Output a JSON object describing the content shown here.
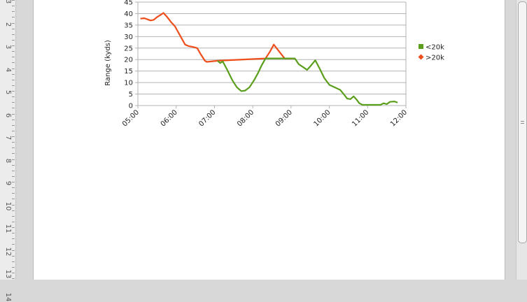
{
  "ruler": {
    "labels": [
      "3",
      "2",
      "3",
      "4",
      "5",
      "6",
      "7",
      "8",
      "9",
      "10",
      "11",
      "12",
      "13",
      "14"
    ]
  },
  "chart_data": {
    "type": "line",
    "title": "",
    "xlabel": "",
    "ylabel": "Range (kyds)",
    "x_ticks": [
      "05:00",
      "06:00",
      "07:00",
      "08:00",
      "09:00",
      "10:00",
      "11:00",
      "12:00"
    ],
    "y_ticks": [
      "0",
      "5",
      "10",
      "15",
      "20",
      "25",
      "30",
      "35",
      "40",
      "45"
    ],
    "ylim": [
      0,
      45
    ],
    "xlim": [
      "05:00",
      "12:00"
    ],
    "grid": true,
    "legend_position": "right",
    "series": [
      {
        "name": "<20k",
        "color": "#5a9e1b",
        "marker": "square",
        "points": [
          [
            "07:05",
            19.5
          ],
          [
            "07:09",
            18.5
          ],
          [
            "07:13",
            19.2
          ],
          [
            "07:20",
            15.5
          ],
          [
            "07:28",
            11.0
          ],
          [
            "07:35",
            8.0
          ],
          [
            "07:42",
            6.3
          ],
          [
            "07:48",
            6.5
          ],
          [
            "07:55",
            8.0
          ],
          [
            "08:02",
            11.0
          ],
          [
            "08:08",
            14.0
          ],
          [
            "08:14",
            17.5
          ],
          [
            "08:20",
            20.5
          ],
          [
            "09:06",
            20.5
          ],
          [
            "09:12",
            18.0
          ],
          [
            "09:20",
            16.5
          ],
          [
            "09:25",
            15.5
          ],
          [
            "09:30",
            17.0
          ],
          [
            "09:38",
            19.7
          ],
          [
            "09:45",
            16.0
          ],
          [
            "09:52",
            12.0
          ],
          [
            "10:00",
            9.0
          ],
          [
            "10:08",
            8.0
          ],
          [
            "10:17",
            6.8
          ],
          [
            "10:23",
            4.8
          ],
          [
            "10:28",
            3.0
          ],
          [
            "10:33",
            2.8
          ],
          [
            "10:38",
            4.0
          ],
          [
            "10:43",
            2.5
          ],
          [
            "10:47",
            1.0
          ],
          [
            "10:52",
            0.3
          ],
          [
            "11:00",
            0.3
          ],
          [
            "11:10",
            0.3
          ],
          [
            "11:20",
            0.3
          ],
          [
            "11:25",
            1.0
          ],
          [
            "11:30",
            0.6
          ],
          [
            "11:35",
            1.6
          ],
          [
            "11:42",
            1.8
          ],
          [
            "11:47",
            1.3
          ]
        ]
      },
      {
        "name": ">20k",
        "color": "#ee4e1c",
        "marker": "diamond",
        "points": [
          [
            "05:04",
            37.8
          ],
          [
            "05:10",
            38.0
          ],
          [
            "05:15",
            37.5
          ],
          [
            "05:20",
            37.0
          ],
          [
            "05:25",
            37.3
          ],
          [
            "05:30",
            38.5
          ],
          [
            "05:36",
            39.5
          ],
          [
            "05:40",
            40.3
          ],
          [
            "05:46",
            38.5
          ],
          [
            "05:52",
            36.3
          ],
          [
            "05:58",
            34.5
          ],
          [
            "06:06",
            30.5
          ],
          [
            "06:14",
            26.5
          ],
          [
            "06:20",
            25.8
          ],
          [
            "06:26",
            25.5
          ],
          [
            "06:33",
            25.0
          ],
          [
            "06:38",
            22.5
          ],
          [
            "06:45",
            19.5
          ],
          [
            "06:48",
            19.0
          ],
          [
            "07:05",
            19.5
          ],
          [
            "08:20",
            20.5
          ],
          [
            "08:27",
            23.5
          ],
          [
            "08:33",
            26.5
          ],
          [
            "08:40",
            24.0
          ],
          [
            "08:50",
            20.5
          ],
          [
            "09:06",
            20.5
          ]
        ]
      }
    ]
  }
}
